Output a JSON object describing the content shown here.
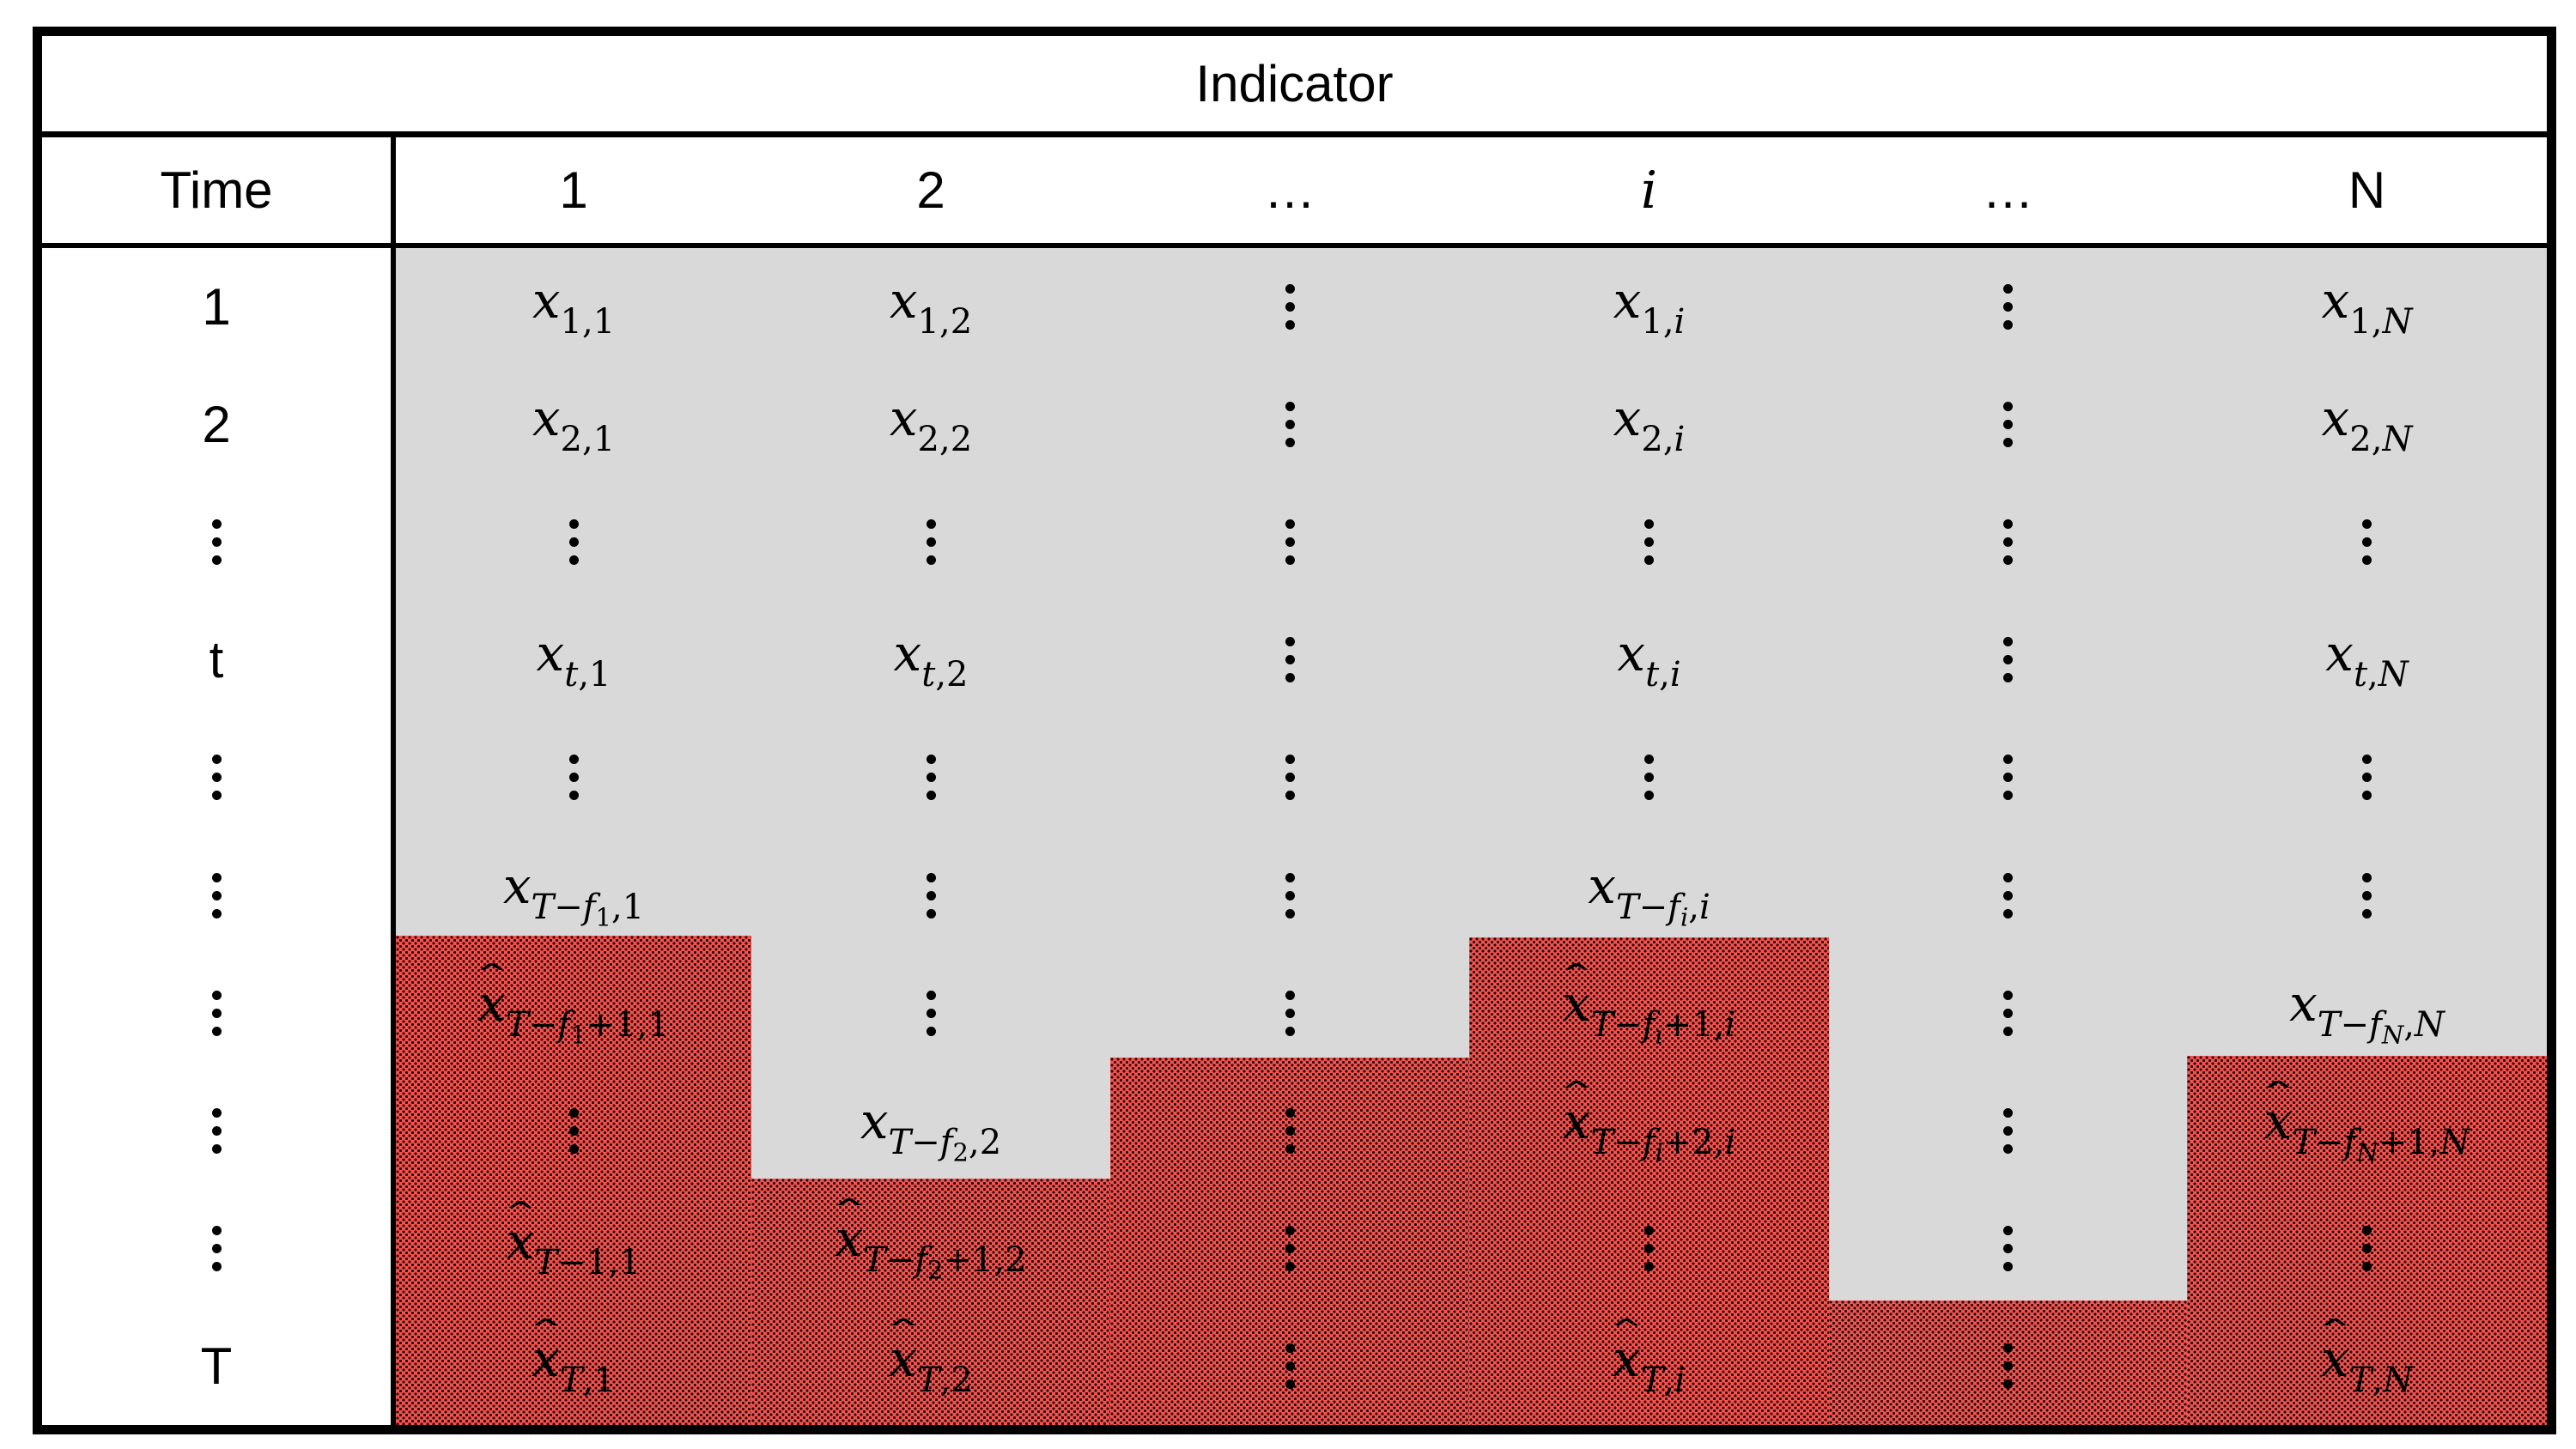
{
  "header": {
    "indicator": "Indicator",
    "time": "Time",
    "columns": [
      {
        "v": "1"
      },
      {
        "v": "2"
      },
      {
        "v": "…"
      },
      {
        "v": "i",
        "it": 1
      },
      {
        "v": "…"
      },
      {
        "v": "N"
      }
    ]
  },
  "time_rows": [
    {
      "k": "t",
      "v": "1"
    },
    {
      "k": "t",
      "v": "2"
    },
    {
      "k": "d"
    },
    {
      "k": "t",
      "v": "t"
    },
    {
      "k": "d"
    },
    {
      "k": "d"
    },
    {
      "k": "d"
    },
    {
      "k": "d"
    },
    {
      "k": "d"
    },
    {
      "k": "t",
      "v": "T"
    }
  ],
  "glyphs": {
    "base": "x",
    "hat": "ˆ",
    "vdots": "⋮"
  },
  "colors": {
    "observed_bg": "#d9d9d9",
    "forecast_bg": "#f2534f",
    "forecast_dot": "#200505",
    "border": "#000000",
    "page_bg": "#ffffff",
    "text": "#000000"
  },
  "forecast_start_row_by_column": [
    7,
    9,
    8,
    7,
    10,
    8
  ],
  "cells": [
    [
      {
        "k": "m",
        "hat": 0,
        "sub": [
          {
            "t": "1,1"
          }
        ]
      },
      {
        "k": "m",
        "hat": 0,
        "sub": [
          {
            "t": "1,2"
          }
        ]
      },
      {
        "k": "d"
      },
      {
        "k": "m",
        "hat": 0,
        "sub": [
          {
            "t": "1,"
          },
          {
            "t": "i",
            "it": 1
          }
        ]
      },
      {
        "k": "d"
      },
      {
        "k": "m",
        "hat": 0,
        "sub": [
          {
            "t": "1,"
          },
          {
            "t": "N",
            "it": 1
          }
        ]
      }
    ],
    [
      {
        "k": "m",
        "hat": 0,
        "sub": [
          {
            "t": "2,1"
          }
        ]
      },
      {
        "k": "m",
        "hat": 0,
        "sub": [
          {
            "t": "2,2"
          }
        ]
      },
      {
        "k": "d"
      },
      {
        "k": "m",
        "hat": 0,
        "sub": [
          {
            "t": "2,"
          },
          {
            "t": "i",
            "it": 1
          }
        ]
      },
      {
        "k": "d"
      },
      {
        "k": "m",
        "hat": 0,
        "sub": [
          {
            "t": "2,"
          },
          {
            "t": "N",
            "it": 1
          }
        ]
      }
    ],
    [
      {
        "k": "d"
      },
      {
        "k": "d"
      },
      {
        "k": "d"
      },
      {
        "k": "d"
      },
      {
        "k": "d"
      },
      {
        "k": "d"
      }
    ],
    [
      {
        "k": "m",
        "hat": 0,
        "sub": [
          {
            "t": "t",
            "it": 1
          },
          {
            "t": ",1"
          }
        ]
      },
      {
        "k": "m",
        "hat": 0,
        "sub": [
          {
            "t": "t",
            "it": 1
          },
          {
            "t": ",2"
          }
        ]
      },
      {
        "k": "d"
      },
      {
        "k": "m",
        "hat": 0,
        "sub": [
          {
            "t": "t",
            "it": 1
          },
          {
            "t": ","
          },
          {
            "t": "i",
            "it": 1
          }
        ]
      },
      {
        "k": "d"
      },
      {
        "k": "m",
        "hat": 0,
        "sub": [
          {
            "t": "t",
            "it": 1
          },
          {
            "t": ","
          },
          {
            "t": "N",
            "it": 1
          }
        ]
      }
    ],
    [
      {
        "k": "d"
      },
      {
        "k": "d"
      },
      {
        "k": "d"
      },
      {
        "k": "d"
      },
      {
        "k": "d"
      },
      {
        "k": "d"
      }
    ],
    [
      {
        "k": "m",
        "hat": 0,
        "sub": [
          {
            "t": "T",
            "it": 1
          },
          {
            "t": "−"
          },
          {
            "t": "f",
            "it": 1
          },
          {
            "t": "1",
            "lv": 1
          },
          {
            "t": ",1"
          }
        ]
      },
      {
        "k": "d"
      },
      {
        "k": "d"
      },
      {
        "k": "m",
        "hat": 0,
        "sub": [
          {
            "t": "T",
            "it": 1
          },
          {
            "t": "−"
          },
          {
            "t": "f",
            "it": 1
          },
          {
            "t": "i",
            "lv": 1,
            "it": 1
          },
          {
            "t": ","
          },
          {
            "t": "i",
            "it": 1
          }
        ]
      },
      {
        "k": "d"
      },
      {
        "k": "d"
      }
    ],
    [
      {
        "k": "m",
        "hat": 1,
        "sub": [
          {
            "t": "T",
            "it": 1
          },
          {
            "t": "−"
          },
          {
            "t": "f",
            "it": 1
          },
          {
            "t": "1",
            "lv": 1
          },
          {
            "t": "+1,1"
          }
        ]
      },
      {
        "k": "d"
      },
      {
        "k": "d"
      },
      {
        "k": "m",
        "hat": 1,
        "sub": [
          {
            "t": "T",
            "it": 1
          },
          {
            "t": "−"
          },
          {
            "t": "f",
            "it": 1
          },
          {
            "t": "i",
            "lv": 1,
            "it": 1
          },
          {
            "t": "+1,"
          },
          {
            "t": "i",
            "it": 1
          }
        ]
      },
      {
        "k": "d"
      },
      {
        "k": "m",
        "hat": 0,
        "sub": [
          {
            "t": "T",
            "it": 1
          },
          {
            "t": "−"
          },
          {
            "t": "f",
            "it": 1
          },
          {
            "t": "N",
            "lv": 1,
            "it": 1
          },
          {
            "t": ","
          },
          {
            "t": "N",
            "it": 1
          }
        ]
      }
    ],
    [
      {
        "k": "d"
      },
      {
        "k": "m",
        "hat": 0,
        "sub": [
          {
            "t": "T",
            "it": 1
          },
          {
            "t": "−"
          },
          {
            "t": "f",
            "it": 1
          },
          {
            "t": "2",
            "lv": 1
          },
          {
            "t": ",2"
          }
        ]
      },
      {
        "k": "d"
      },
      {
        "k": "m",
        "hat": 1,
        "sub": [
          {
            "t": "T",
            "it": 1
          },
          {
            "t": "−"
          },
          {
            "t": "f",
            "it": 1
          },
          {
            "t": "i",
            "lv": 1,
            "it": 1
          },
          {
            "t": "+2,"
          },
          {
            "t": "i",
            "it": 1
          }
        ]
      },
      {
        "k": "d"
      },
      {
        "k": "m",
        "hat": 1,
        "sub": [
          {
            "t": "T",
            "it": 1
          },
          {
            "t": "−"
          },
          {
            "t": "f",
            "it": 1
          },
          {
            "t": "N",
            "lv": 1,
            "it": 1
          },
          {
            "t": "+1,"
          },
          {
            "t": "N",
            "it": 1
          }
        ]
      }
    ],
    [
      {
        "k": "m",
        "hat": 1,
        "sub": [
          {
            "t": "T",
            "it": 1
          },
          {
            "t": "−1,1"
          }
        ]
      },
      {
        "k": "m",
        "hat": 1,
        "sub": [
          {
            "t": "T",
            "it": 1
          },
          {
            "t": "−"
          },
          {
            "t": "f",
            "it": 1
          },
          {
            "t": "2",
            "lv": 1
          },
          {
            "t": "+1,2"
          }
        ]
      },
      {
        "k": "d"
      },
      {
        "k": "d"
      },
      {
        "k": "d"
      },
      {
        "k": "d"
      }
    ],
    [
      {
        "k": "m",
        "hat": 1,
        "sub": [
          {
            "t": "T",
            "it": 1
          },
          {
            "t": ",1"
          }
        ]
      },
      {
        "k": "m",
        "hat": 1,
        "sub": [
          {
            "t": "T",
            "it": 1
          },
          {
            "t": ",2"
          }
        ]
      },
      {
        "k": "d"
      },
      {
        "k": "m",
        "hat": 1,
        "sub": [
          {
            "t": "T",
            "it": 1
          },
          {
            "t": ","
          },
          {
            "t": "i",
            "it": 1
          }
        ]
      },
      {
        "k": "d"
      },
      {
        "k": "m",
        "hat": 1,
        "sub": [
          {
            "t": "T",
            "it": 1
          },
          {
            "t": ","
          },
          {
            "t": "N",
            "it": 1
          }
        ]
      }
    ]
  ]
}
